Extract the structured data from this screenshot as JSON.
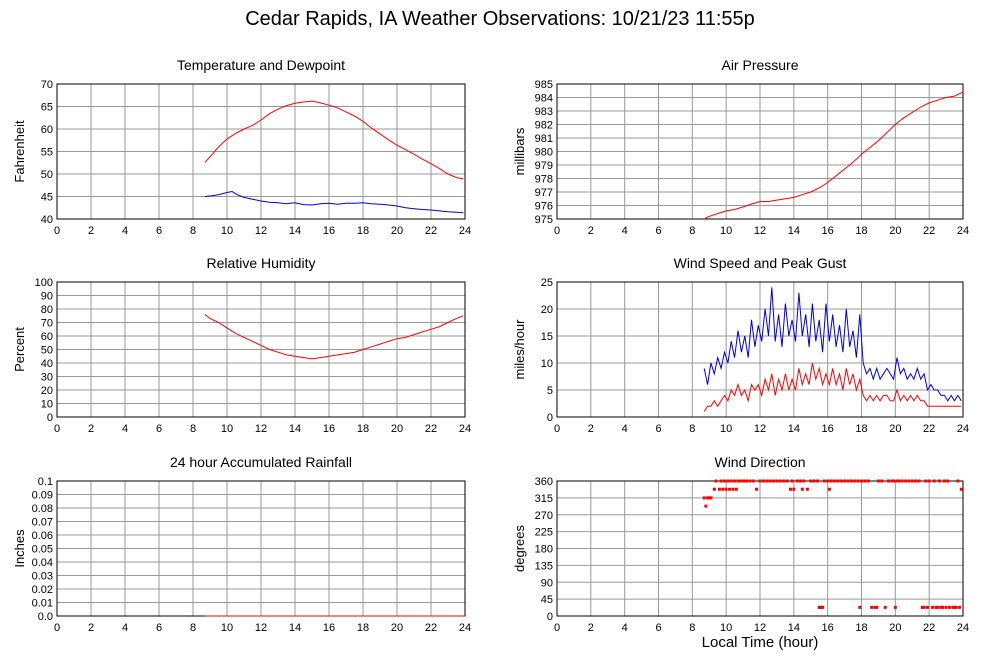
{
  "page": {
    "title": "Cedar Rapids, IA Weather Observations: 10/21/23 11:55p",
    "xaxis_title": "Local Time (hour)"
  },
  "colors": {
    "red": "#ff0000",
    "blue": "#0000dd",
    "grid": "#999999",
    "frame": "#000000"
  },
  "chart_data": [
    {
      "id": "temperature",
      "type": "line",
      "title": "Temperature and Dewpoint",
      "xlabel": "",
      "ylabel": "Fahrenheit",
      "xlim": [
        0,
        24
      ],
      "ylim": [
        40,
        70
      ],
      "xticks": [
        0,
        2,
        4,
        6,
        8,
        10,
        12,
        14,
        16,
        18,
        20,
        22,
        24
      ],
      "yticks": [
        40,
        45,
        50,
        55,
        60,
        65,
        70
      ],
      "grid": true,
      "series": [
        {
          "color": "#ff0000",
          "x": [
            8.7,
            9.0,
            9.5,
            10.0,
            10.5,
            11.0,
            11.5,
            12.0,
            12.5,
            13.0,
            13.5,
            14.0,
            14.5,
            15.0,
            15.5,
            16.0,
            16.5,
            17.0,
            17.5,
            18.0,
            18.5,
            19.0,
            19.5,
            20.0,
            20.5,
            21.0,
            21.5,
            22.0,
            22.5,
            23.0,
            23.5,
            23.9
          ],
          "y": [
            52.6,
            53.8,
            56.0,
            57.8,
            59.0,
            60.0,
            60.8,
            62.0,
            63.4,
            64.4,
            65.2,
            65.7,
            66.0,
            66.2,
            65.8,
            65.3,
            64.7,
            63.8,
            62.9,
            61.7,
            60.2,
            58.9,
            57.6,
            56.4,
            55.4,
            54.4,
            53.3,
            52.3,
            51.2,
            50.0,
            49.2,
            48.9
          ]
        },
        {
          "color": "#0000dd",
          "x": [
            8.7,
            9.0,
            9.5,
            10.0,
            10.3,
            10.6,
            11.0,
            11.5,
            12.0,
            12.5,
            13.0,
            13.5,
            14.0,
            14.5,
            15.0,
            15.5,
            16.0,
            16.5,
            17.0,
            17.5,
            18.0,
            18.5,
            19.0,
            19.5,
            20.0,
            20.5,
            21.0,
            21.5,
            22.0,
            22.5,
            23.0,
            23.5,
            23.9
          ],
          "y": [
            45.0,
            45.1,
            45.4,
            45.9,
            46.1,
            45.4,
            44.8,
            44.4,
            44.0,
            43.7,
            43.6,
            43.4,
            43.6,
            43.2,
            43.1,
            43.4,
            43.5,
            43.3,
            43.5,
            43.5,
            43.6,
            43.4,
            43.3,
            43.1,
            42.9,
            42.5,
            42.3,
            42.1,
            42.0,
            41.8,
            41.6,
            41.5,
            41.4
          ]
        }
      ]
    },
    {
      "id": "pressure",
      "type": "line",
      "title": "Air Pressure",
      "xlabel": "",
      "ylabel": "millibars",
      "xlim": [
        0,
        24
      ],
      "ylim": [
        975,
        985
      ],
      "xticks": [
        0,
        2,
        4,
        6,
        8,
        10,
        12,
        14,
        16,
        18,
        20,
        22,
        24
      ],
      "yticks": [
        975,
        976,
        977,
        978,
        979,
        980,
        981,
        982,
        983,
        984,
        985
      ],
      "grid": true,
      "series": [
        {
          "color": "#ff0000",
          "x": [
            8.7,
            9.0,
            9.5,
            10.0,
            10.5,
            11.0,
            11.5,
            12.0,
            12.5,
            13.0,
            13.5,
            14.0,
            14.5,
            15.0,
            15.5,
            16.0,
            16.5,
            17.0,
            17.5,
            18.0,
            18.5,
            19.0,
            19.5,
            20.0,
            20.5,
            21.0,
            21.5,
            22.0,
            22.5,
            23.0,
            23.5,
            24.0
          ],
          "y": [
            975.0,
            975.2,
            975.4,
            975.6,
            975.7,
            975.9,
            976.1,
            976.3,
            976.3,
            976.4,
            976.5,
            976.6,
            976.8,
            977.0,
            977.3,
            977.7,
            978.2,
            978.7,
            979.2,
            979.8,
            980.3,
            980.8,
            981.4,
            982.0,
            982.5,
            982.9,
            983.3,
            983.6,
            983.8,
            984.0,
            984.1,
            984.4
          ]
        }
      ]
    },
    {
      "id": "humidity",
      "type": "line",
      "title": "Relative Humidity",
      "xlabel": "",
      "ylabel": "Percent",
      "xlim": [
        0,
        24
      ],
      "ylim": [
        0,
        100
      ],
      "xticks": [
        0,
        2,
        4,
        6,
        8,
        10,
        12,
        14,
        16,
        18,
        20,
        22,
        24
      ],
      "yticks": [
        0,
        10,
        20,
        30,
        40,
        50,
        60,
        70,
        80,
        90,
        100
      ],
      "grid": true,
      "series": [
        {
          "color": "#ff0000",
          "x": [
            8.7,
            9.0,
            9.5,
            10.0,
            10.5,
            11.0,
            11.5,
            12.0,
            12.5,
            13.0,
            13.5,
            14.0,
            14.5,
            15.0,
            15.5,
            16.0,
            16.5,
            17.0,
            17.5,
            18.0,
            18.5,
            19.0,
            19.5,
            20.0,
            20.5,
            21.0,
            21.5,
            22.0,
            22.5,
            23.0,
            23.5,
            23.9
          ],
          "y": [
            76,
            73,
            70,
            66,
            62,
            59,
            56,
            53,
            50,
            48,
            46,
            45,
            44,
            43,
            44,
            45,
            46,
            47,
            48,
            50,
            52,
            54,
            56,
            58,
            59,
            61,
            63,
            65,
            67,
            70,
            73,
            75
          ]
        }
      ]
    },
    {
      "id": "wind-speed",
      "type": "line",
      "title": "Wind Speed and Peak Gust",
      "xlabel": "",
      "ylabel": "miles/hour",
      "xlim": [
        0,
        24
      ],
      "ylim": [
        0,
        25
      ],
      "xticks": [
        0,
        2,
        4,
        6,
        8,
        10,
        12,
        14,
        16,
        18,
        20,
        22,
        24
      ],
      "yticks": [
        0,
        5,
        10,
        15,
        20,
        25
      ],
      "grid": true,
      "series": [
        {
          "color": "#0000dd",
          "x": [
            8.7,
            8.9,
            9.1,
            9.3,
            9.5,
            9.7,
            9.9,
            10.1,
            10.3,
            10.5,
            10.7,
            10.9,
            11.1,
            11.3,
            11.5,
            11.7,
            11.9,
            12.1,
            12.3,
            12.5,
            12.7,
            12.9,
            13.1,
            13.3,
            13.5,
            13.7,
            13.9,
            14.1,
            14.3,
            14.5,
            14.7,
            14.9,
            15.1,
            15.3,
            15.5,
            15.7,
            15.9,
            16.1,
            16.3,
            16.5,
            16.7,
            16.9,
            17.1,
            17.3,
            17.5,
            17.7,
            17.9,
            18.1,
            18.3,
            18.5,
            18.7,
            18.9,
            19.1,
            19.3,
            19.5,
            19.7,
            19.9,
            20.1,
            20.3,
            20.5,
            20.7,
            20.9,
            21.1,
            21.3,
            21.5,
            21.7,
            21.9,
            22.1,
            22.3,
            22.5,
            22.7,
            22.9,
            23.1,
            23.3,
            23.5,
            23.7,
            23.9
          ],
          "y": [
            9,
            6,
            10,
            8,
            11,
            9,
            12,
            10,
            14,
            11,
            16,
            12,
            15,
            11,
            18,
            13,
            17,
            14,
            20,
            15,
            24,
            14,
            19,
            13,
            21,
            15,
            18,
            14,
            23,
            15,
            19,
            13,
            21,
            14,
            18,
            12,
            21,
            14,
            19,
            13,
            17,
            12,
            20,
            13,
            16,
            11,
            19,
            10,
            8,
            9,
            7,
            9,
            7,
            8,
            9,
            8,
            7,
            11,
            8,
            9,
            7,
            8,
            7,
            9,
            7,
            8,
            5,
            6,
            5,
            5,
            4,
            4,
            3,
            4,
            3,
            4,
            3
          ]
        },
        {
          "color": "#ff0000",
          "x": [
            8.7,
            8.9,
            9.1,
            9.3,
            9.5,
            9.7,
            9.9,
            10.1,
            10.3,
            10.5,
            10.7,
            10.9,
            11.1,
            11.3,
            11.5,
            11.7,
            11.9,
            12.1,
            12.3,
            12.5,
            12.7,
            12.9,
            13.1,
            13.3,
            13.5,
            13.7,
            13.9,
            14.1,
            14.3,
            14.5,
            14.7,
            14.9,
            15.1,
            15.3,
            15.5,
            15.7,
            15.9,
            16.1,
            16.3,
            16.5,
            16.7,
            16.9,
            17.1,
            17.3,
            17.5,
            17.7,
            17.9,
            18.1,
            18.3,
            18.5,
            18.7,
            18.9,
            19.1,
            19.3,
            19.5,
            19.7,
            19.9,
            20.1,
            20.3,
            20.5,
            20.7,
            20.9,
            21.1,
            21.3,
            21.5,
            21.7,
            21.9,
            22.1,
            22.3,
            22.5,
            22.7,
            22.9,
            23.1,
            23.3,
            23.5,
            23.7,
            23.9
          ],
          "y": [
            1,
            2,
            2,
            3,
            2,
            3,
            4,
            3,
            5,
            4,
            6,
            4,
            5,
            3,
            6,
            5,
            6,
            4,
            7,
            5,
            8,
            4,
            7,
            5,
            8,
            5,
            7,
            5,
            9,
            6,
            8,
            6,
            10,
            7,
            9,
            6,
            8,
            6,
            9,
            6,
            8,
            5,
            9,
            6,
            8,
            5,
            7,
            4,
            3,
            4,
            3,
            4,
            3,
            4,
            4,
            3,
            3,
            5,
            3,
            4,
            3,
            4,
            3,
            4,
            3,
            3,
            2,
            2,
            2,
            2,
            2,
            2,
            2,
            2,
            2,
            2,
            2
          ]
        }
      ]
    },
    {
      "id": "rainfall",
      "type": "line",
      "title": "24 hour Accumulated Rainfall",
      "xlabel": "",
      "ylabel": "Inches",
      "xlim": [
        0,
        24
      ],
      "ylim": [
        0,
        0.1
      ],
      "xticks": [
        0,
        2,
        4,
        6,
        8,
        10,
        12,
        14,
        16,
        18,
        20,
        22,
        24
      ],
      "yticks": [
        "0.0",
        "0.01",
        "0.02",
        "0.03",
        "0.04",
        "0.05",
        "0.06",
        "0.07",
        "0.08",
        "0.09",
        "0.1"
      ],
      "grid": true,
      "series": [
        {
          "color": "#ff0000",
          "x": [
            8.7,
            24.0
          ],
          "y": [
            0,
            0
          ]
        }
      ]
    },
    {
      "id": "wind-direction",
      "type": "scatter",
      "title": "Wind Direction",
      "xlabel": "Local Time (hour)",
      "ylabel": "degrees",
      "xlim": [
        0,
        24
      ],
      "ylim": [
        0,
        360
      ],
      "xticks": [
        0,
        2,
        4,
        6,
        8,
        10,
        12,
        14,
        16,
        18,
        20,
        22,
        24
      ],
      "yticks": [
        0,
        45,
        90,
        135,
        180,
        225,
        270,
        315,
        360
      ],
      "grid": true,
      "series": [
        {
          "color": "#ff0000",
          "x": [
            8.7,
            8.8,
            8.9,
            9.0,
            9.1,
            9.3,
            9.4,
            9.6,
            9.7,
            9.8,
            9.9,
            10.0,
            10.1,
            10.2,
            10.3,
            10.4,
            10.5,
            10.6,
            10.7,
            10.8,
            10.9,
            11.0,
            11.1,
            11.2,
            11.4,
            11.6,
            11.8,
            12.0,
            12.2,
            12.4,
            12.6,
            12.8,
            13.0,
            13.2,
            13.4,
            13.6,
            13.8,
            13.9,
            14.0,
            14.2,
            14.4,
            14.5,
            14.6,
            14.8,
            15.0,
            15.2,
            15.4,
            15.5,
            15.6,
            15.7,
            15.8,
            16.0,
            16.1,
            16.2,
            16.4,
            16.6,
            16.8,
            17.0,
            17.2,
            17.4,
            17.6,
            17.8,
            17.9,
            18.0,
            18.2,
            18.4,
            18.6,
            18.8,
            18.9,
            19.0,
            19.2,
            19.4,
            19.6,
            19.8,
            19.9,
            20.0,
            20.1,
            20.2,
            20.4,
            20.6,
            20.8,
            21.0,
            21.2,
            21.4,
            21.6,
            21.7,
            21.8,
            21.9,
            22.0,
            22.2,
            22.3,
            22.4,
            22.5,
            22.6,
            22.7,
            22.8,
            22.9,
            23.0,
            23.1,
            23.2,
            23.4,
            23.5,
            23.6,
            23.7,
            23.8,
            23.9
          ],
          "y": [
            315,
            293,
            315,
            315,
            315,
            338,
            360,
            338,
            360,
            338,
            360,
            338,
            360,
            338,
            360,
            338,
            360,
            338,
            360,
            360,
            360,
            360,
            360,
            360,
            360,
            360,
            338,
            360,
            360,
            360,
            360,
            360,
            360,
            360,
            360,
            360,
            338,
            360,
            338,
            360,
            360,
            338,
            360,
            338,
            360,
            360,
            360,
            23,
            23,
            23,
            360,
            360,
            338,
            360,
            360,
            360,
            360,
            360,
            360,
            360,
            360,
            360,
            23,
            360,
            360,
            360,
            23,
            23,
            23,
            360,
            360,
            23,
            360,
            360,
            360,
            23,
            360,
            360,
            360,
            360,
            360,
            360,
            360,
            360,
            23,
            23,
            360,
            23,
            360,
            23,
            360,
            23,
            23,
            360,
            23,
            23,
            360,
            23,
            360,
            23,
            23,
            23,
            23,
            360,
            23,
            338
          ]
        }
      ]
    }
  ]
}
